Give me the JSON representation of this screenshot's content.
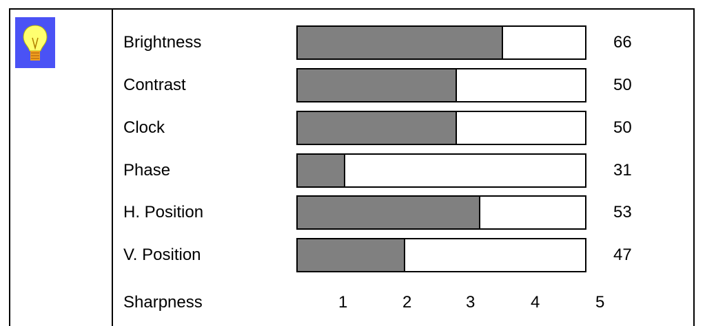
{
  "icon": "lightbulb-icon",
  "colors": {
    "icon_background": "#4a52f5",
    "bar_fill": "#808080"
  },
  "settings": [
    {
      "id": "brightness",
      "label": "Brightness",
      "value": "66",
      "level": 0.71
    },
    {
      "id": "contrast",
      "label": "Contrast",
      "value": "50",
      "level": 0.55
    },
    {
      "id": "clock",
      "label": "Clock",
      "value": "50",
      "level": 0.55
    },
    {
      "id": "phase",
      "label": "Phase",
      "value": "31",
      "level": 0.16
    },
    {
      "id": "h-position",
      "label": "H. Position",
      "value": "53",
      "level": 0.63
    },
    {
      "id": "v-position",
      "label": "V. Position",
      "value": "47",
      "level": 0.37
    }
  ],
  "sharpness": {
    "label": "Sharpness",
    "options": [
      "1",
      "2",
      "3",
      "4",
      "5"
    ]
  }
}
